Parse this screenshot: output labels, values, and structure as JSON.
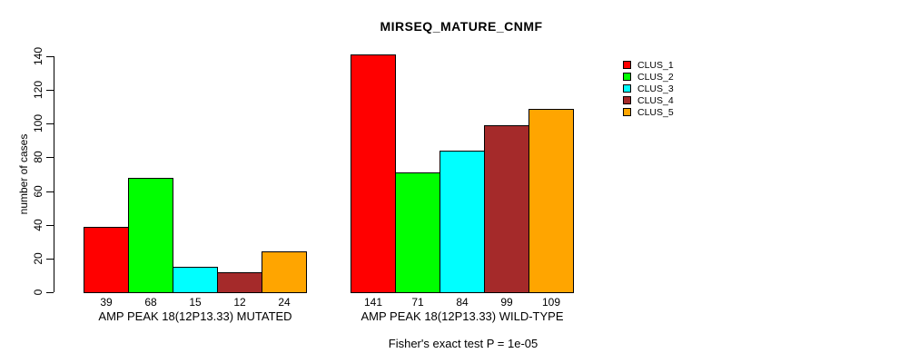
{
  "chart_data": {
    "type": "bar",
    "title": "MIRSEQ_MATURE_CNMF",
    "ylabel": "number of cases",
    "xlabel": "",
    "ylim": [
      0,
      140
    ],
    "yticks": [
      0,
      20,
      40,
      60,
      80,
      100,
      120,
      140
    ],
    "grid": false,
    "legend_position": "right",
    "bar_value_labels_shown": true,
    "categories": [
      "AMP PEAK 18(12P13.33) MUTATED",
      "AMP PEAK 18(12P13.33) WILD-TYPE"
    ],
    "series": [
      {
        "name": "CLUS_1",
        "color": "#FF0000",
        "values": [
          39,
          141
        ]
      },
      {
        "name": "CLUS_2",
        "color": "#00FF00",
        "values": [
          68,
          71
        ]
      },
      {
        "name": "CLUS_3",
        "color": "#00FFFF",
        "values": [
          15,
          84
        ]
      },
      {
        "name": "CLUS_4",
        "color": "#A52A2A",
        "values": [
          12,
          99
        ]
      },
      {
        "name": "CLUS_5",
        "color": "#FFA500",
        "values": [
          24,
          109
        ]
      }
    ],
    "annotation": "Fisher's exact test P = 1e-05"
  }
}
